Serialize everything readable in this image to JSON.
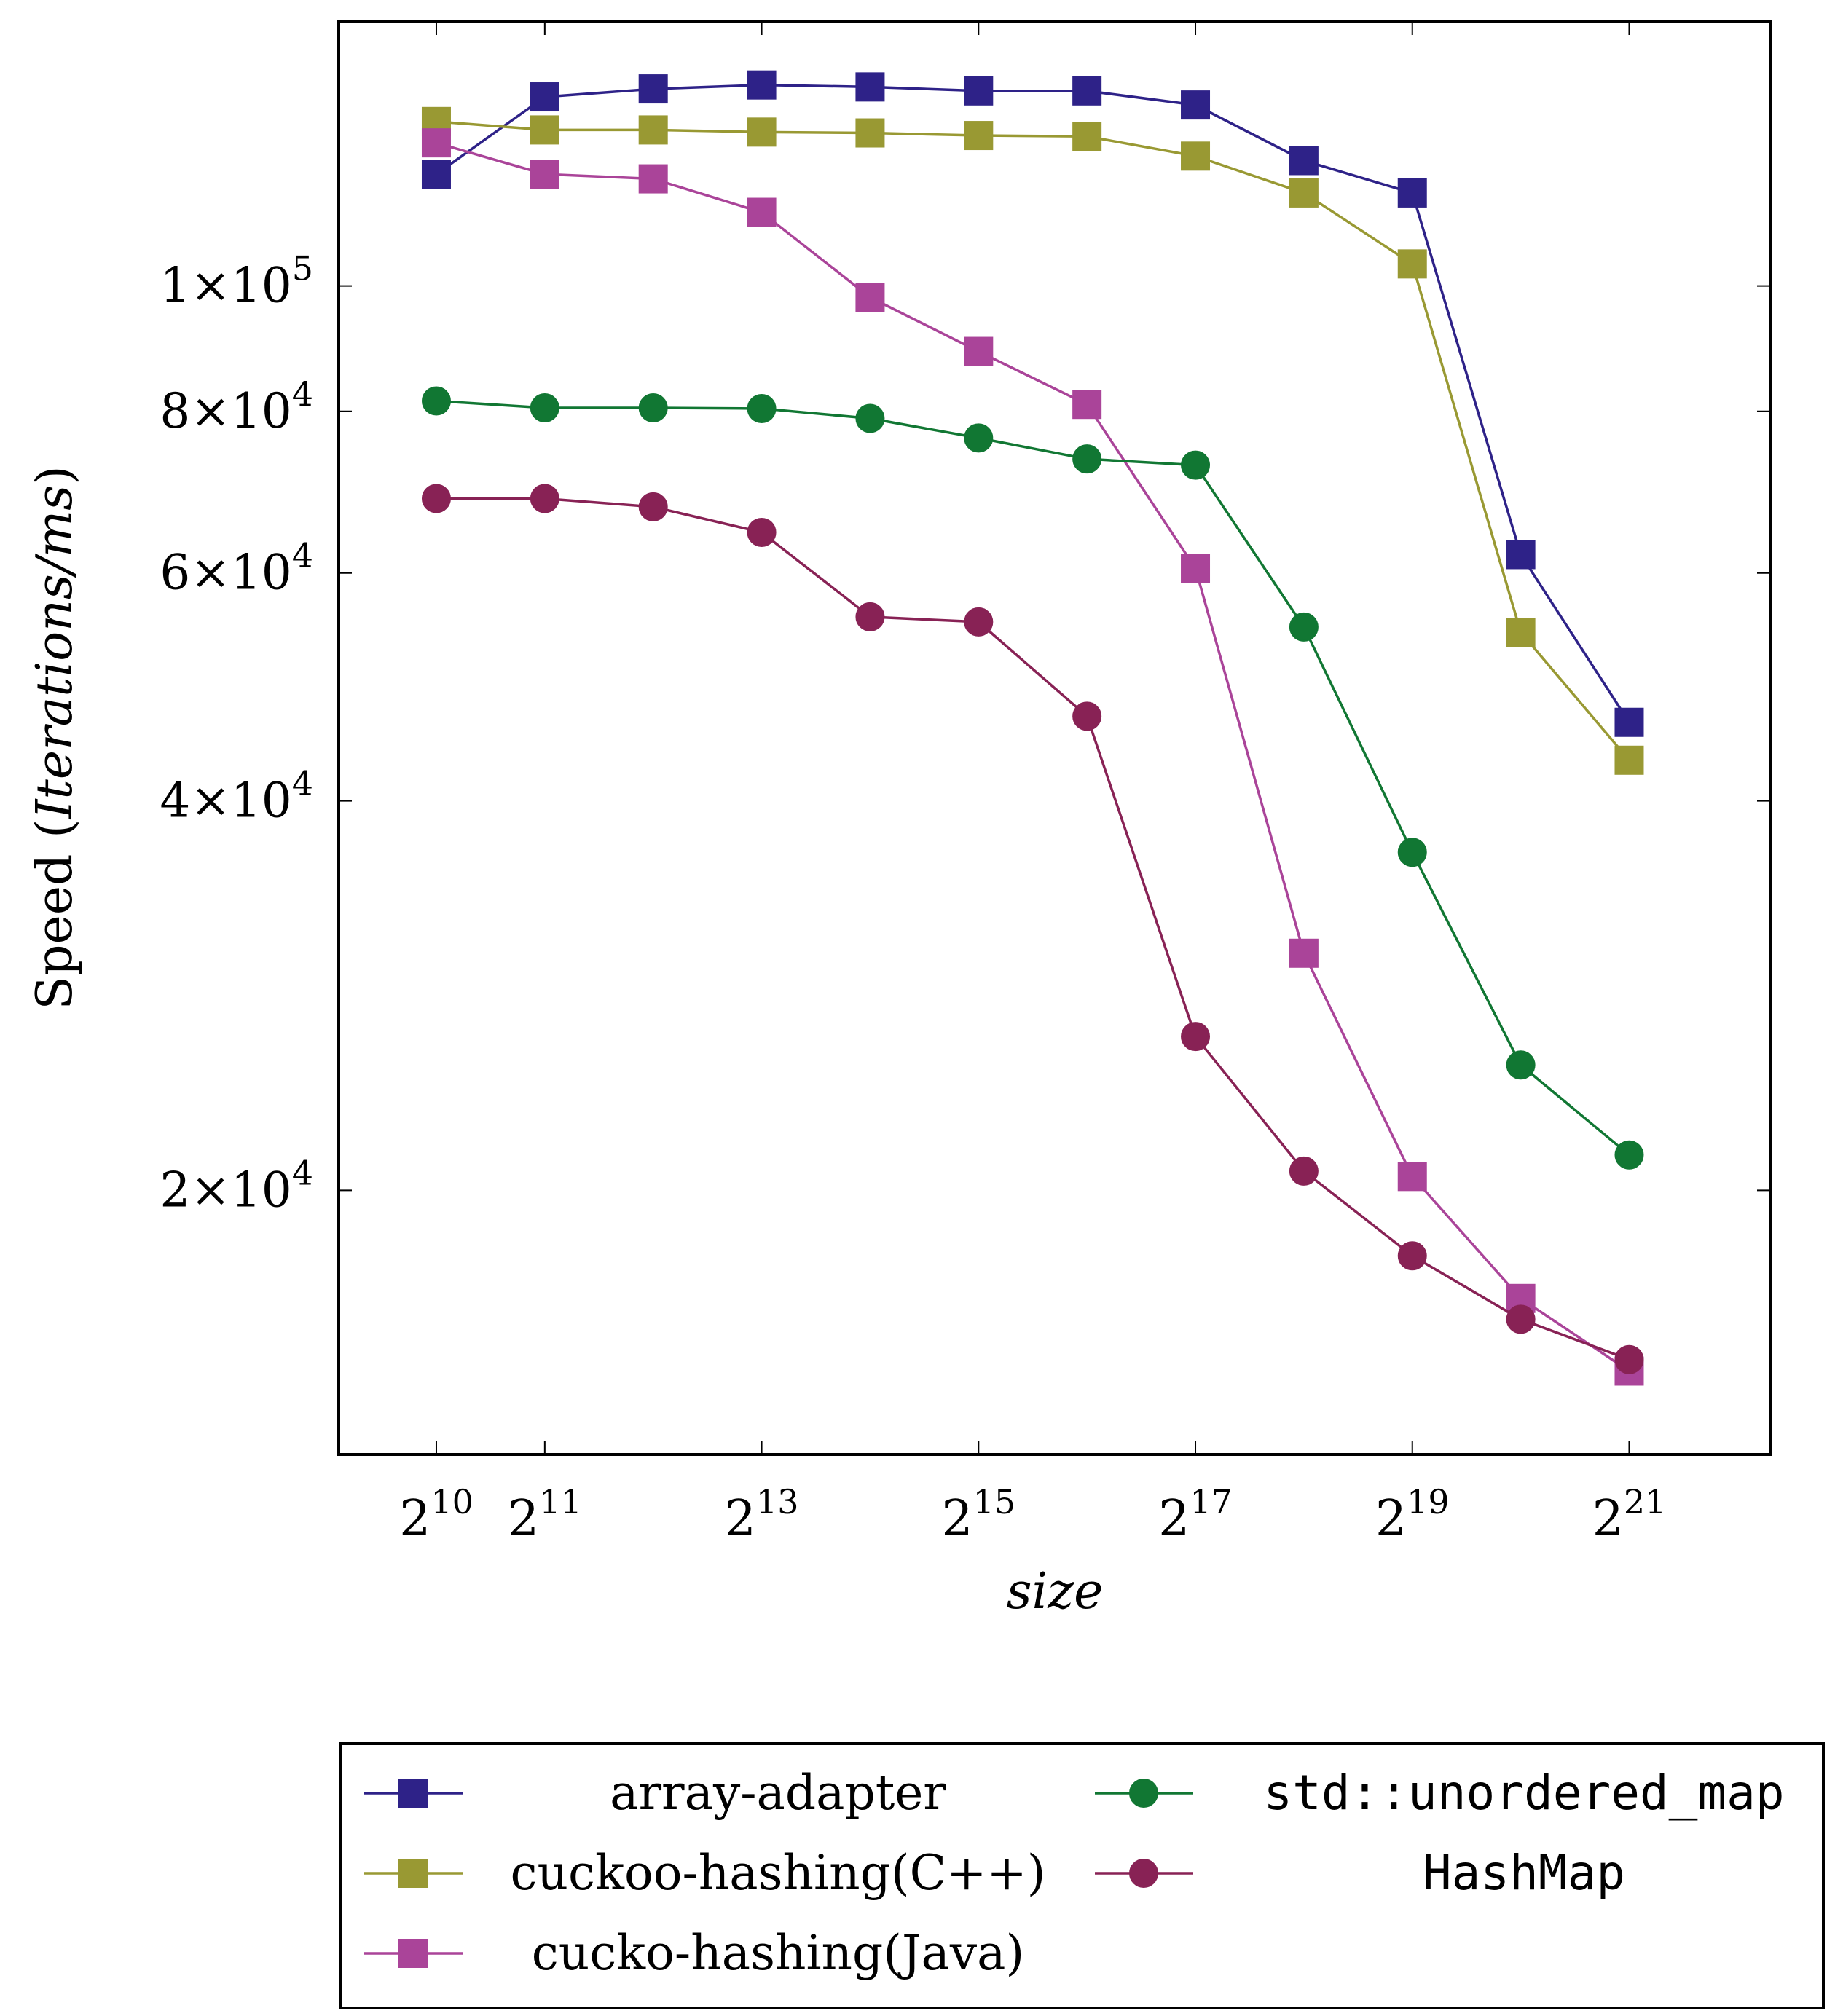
{
  "chart_data": {
    "type": "line",
    "xlabel": "size",
    "ylabel_prefix": "Speed (",
    "ylabel_math": "Iterations/ms",
    "ylabel_suffix": ")",
    "x_scale": "log2",
    "y_scale": "log",
    "xlim_exp": [
      9.1,
      22.3
    ],
    "ylim": [
      12500,
      160000
    ],
    "x_exponents": [
      10,
      11,
      12,
      13,
      14,
      15,
      16,
      17,
      18,
      19,
      20,
      21
    ],
    "x_ticks": [
      {
        "exp": 10,
        "base": "2",
        "sup": "10"
      },
      {
        "exp": 11,
        "base": "2",
        "sup": "11"
      },
      {
        "exp": 13,
        "base": "2",
        "sup": "13"
      },
      {
        "exp": 15,
        "base": "2",
        "sup": "15"
      },
      {
        "exp": 17,
        "base": "2",
        "sup": "17"
      },
      {
        "exp": 19,
        "base": "2",
        "sup": "19"
      },
      {
        "exp": 21,
        "base": "2",
        "sup": "21"
      }
    ],
    "y_ticks": [
      {
        "value": 20000,
        "mantissa": "2",
        "times": "×",
        "base": "10",
        "exp": "4"
      },
      {
        "value": 40000,
        "mantissa": "4",
        "times": "×",
        "base": "10",
        "exp": "4"
      },
      {
        "value": 60000,
        "mantissa": "6",
        "times": "×",
        "base": "10",
        "exp": "4"
      },
      {
        "value": 80000,
        "mantissa": "8",
        "times": "×",
        "base": "10",
        "exp": "4"
      },
      {
        "value": 100000,
        "mantissa": "1",
        "times": "×",
        "base": "10",
        "exp": "5"
      }
    ],
    "legend_position": "below",
    "series": [
      {
        "name": "array-adapter",
        "color": "#2e2288",
        "marker": "square",
        "values": [
          122000,
          140000,
          142000,
          143000,
          142500,
          141500,
          141500,
          138000,
          125000,
          118000,
          62000,
          46000
        ]
      },
      {
        "name": "cuckoo-hashing(C++)",
        "color": "#999933",
        "marker": "square",
        "values": [
          134000,
          132000,
          132000,
          131500,
          131300,
          130700,
          130500,
          126000,
          118000,
          104000,
          54000,
          43000
        ]
      },
      {
        "name": "cucko-hashing(Java)",
        "color": "#aa4499",
        "marker": "square",
        "values": [
          129000,
          122000,
          121000,
          114000,
          98000,
          89000,
          81000,
          60500,
          30500,
          20500,
          16500,
          14500
        ]
      },
      {
        "name": "std::unordered_map",
        "color": "#117733",
        "marker": "circle",
        "mono": true,
        "values": [
          81500,
          80500,
          80500,
          80400,
          79000,
          76300,
          73500,
          72700,
          54500,
          36500,
          25000,
          21300
        ]
      },
      {
        "name": "HashMap",
        "color": "#882255",
        "marker": "circle",
        "mono": true,
        "values": [
          68500,
          68500,
          67500,
          64500,
          55500,
          55000,
          46500,
          26300,
          20700,
          17800,
          15900,
          14800
        ]
      }
    ]
  }
}
